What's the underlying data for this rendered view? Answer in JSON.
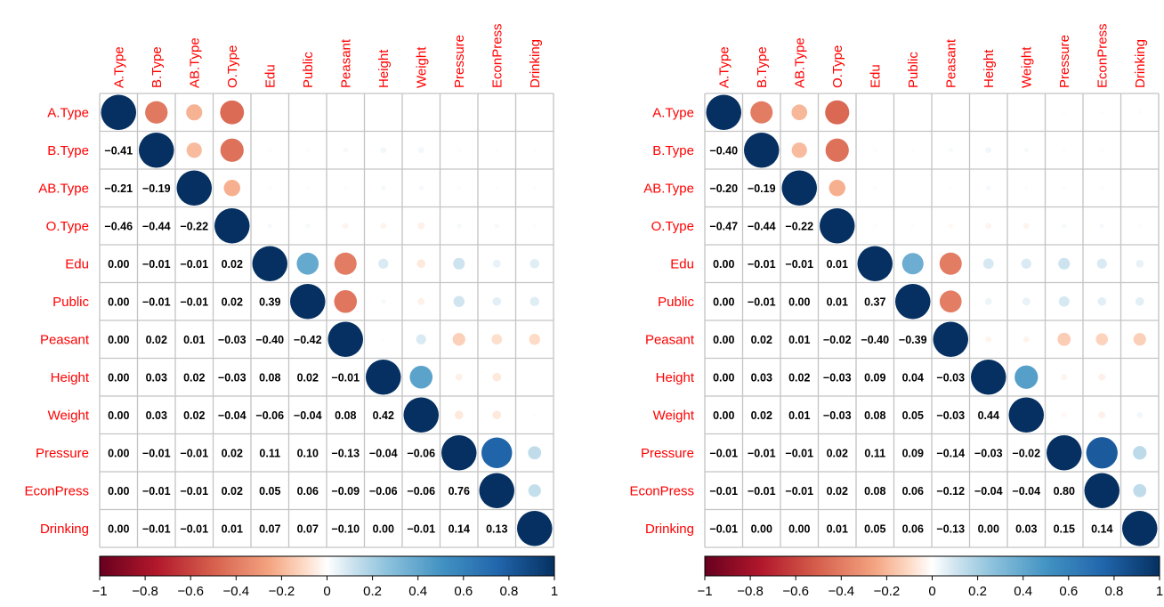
{
  "chart_data": [
    {
      "type": "heatmap",
      "subtype": "correlation-matrix (upper: circles, lower: numbers)",
      "variables": [
        "A.Type",
        "B.Type",
        "AB.Type",
        "O.Type",
        "Edu",
        "Public",
        "Peasant",
        "Height",
        "Weight",
        "Pressure",
        "EconPress",
        "Drinking"
      ],
      "matrix": [
        [
          1.0,
          -0.41,
          -0.21,
          -0.46,
          0.0,
          0.0,
          0.0,
          0.0,
          0.0,
          0.0,
          0.0,
          0.0
        ],
        [
          -0.41,
          1.0,
          -0.19,
          -0.44,
          -0.01,
          -0.01,
          0.02,
          0.03,
          0.03,
          -0.01,
          -0.01,
          -0.01
        ],
        [
          -0.21,
          -0.19,
          1.0,
          -0.22,
          -0.01,
          -0.01,
          0.01,
          0.02,
          0.02,
          -0.01,
          -0.01,
          -0.01
        ],
        [
          -0.46,
          -0.44,
          -0.22,
          1.0,
          0.02,
          0.02,
          -0.03,
          -0.03,
          -0.04,
          0.02,
          0.02,
          0.01
        ],
        [
          0.0,
          -0.01,
          -0.01,
          0.02,
          1.0,
          0.39,
          -0.4,
          0.08,
          -0.06,
          0.11,
          0.05,
          0.07
        ],
        [
          0.0,
          -0.01,
          -0.01,
          0.02,
          0.39,
          1.0,
          -0.42,
          0.02,
          -0.04,
          0.1,
          0.06,
          0.07
        ],
        [
          0.0,
          0.02,
          0.01,
          -0.03,
          -0.4,
          -0.42,
          1.0,
          -0.01,
          0.08,
          -0.13,
          -0.09,
          -0.1
        ],
        [
          0.0,
          0.03,
          0.02,
          -0.03,
          0.08,
          0.02,
          -0.01,
          1.0,
          0.42,
          -0.04,
          -0.06,
          0.0
        ],
        [
          0.0,
          0.03,
          0.02,
          -0.04,
          -0.06,
          -0.04,
          0.08,
          0.42,
          1.0,
          -0.06,
          -0.06,
          -0.01
        ],
        [
          0.0,
          -0.01,
          -0.01,
          0.02,
          0.11,
          0.1,
          -0.13,
          -0.04,
          -0.06,
          1.0,
          0.76,
          0.14
        ],
        [
          0.0,
          -0.01,
          -0.01,
          0.02,
          0.05,
          0.06,
          -0.09,
          -0.06,
          -0.06,
          0.76,
          1.0,
          0.13
        ],
        [
          0.0,
          -0.01,
          -0.01,
          0.01,
          0.07,
          0.07,
          -0.1,
          0.0,
          -0.01,
          0.14,
          0.13,
          1.0
        ]
      ],
      "colorbar": {
        "ticks": [
          "−1",
          "−0.8",
          "−0.6",
          "−0.4",
          "−0.2",
          "0",
          "0.2",
          "0.4",
          "0.6",
          "0.8",
          "1"
        ],
        "range": [
          -1,
          1
        ]
      },
      "colors": {
        "neg": "#67001f",
        "mid": "#ffffff",
        "pos": "#053061",
        "label": "#ff0000"
      },
      "grid": true
    },
    {
      "type": "heatmap",
      "subtype": "correlation-matrix (upper: circles, lower: numbers)",
      "variables": [
        "A.Type",
        "B.Type",
        "AB.Type",
        "O.Type",
        "Edu",
        "Public",
        "Peasant",
        "Height",
        "Weight",
        "Pressure",
        "EconPress",
        "Drinking"
      ],
      "matrix": [
        [
          1.0,
          -0.4,
          -0.2,
          -0.47,
          0.0,
          0.0,
          0.0,
          0.0,
          0.0,
          -0.01,
          -0.01,
          -0.01
        ],
        [
          -0.4,
          1.0,
          -0.19,
          -0.44,
          -0.01,
          -0.01,
          0.02,
          0.03,
          0.02,
          -0.01,
          -0.01,
          0.0
        ],
        [
          -0.2,
          -0.19,
          1.0,
          -0.22,
          -0.01,
          0.0,
          0.01,
          0.02,
          0.01,
          -0.01,
          -0.01,
          0.0
        ],
        [
          -0.47,
          -0.44,
          -0.22,
          1.0,
          0.01,
          0.01,
          -0.02,
          -0.03,
          -0.03,
          0.02,
          0.02,
          0.01
        ],
        [
          0.0,
          -0.01,
          -0.01,
          0.01,
          1.0,
          0.37,
          -0.4,
          0.09,
          0.08,
          0.11,
          0.08,
          0.05
        ],
        [
          0.0,
          -0.01,
          0.0,
          0.01,
          0.37,
          1.0,
          -0.39,
          0.04,
          0.05,
          0.09,
          0.06,
          0.06
        ],
        [
          0.0,
          0.02,
          0.01,
          -0.02,
          -0.4,
          -0.39,
          1.0,
          -0.03,
          -0.03,
          -0.14,
          -0.12,
          -0.13
        ],
        [
          0.0,
          0.03,
          0.02,
          -0.03,
          0.09,
          0.04,
          -0.03,
          1.0,
          0.44,
          -0.03,
          -0.04,
          0.0
        ],
        [
          0.0,
          0.02,
          0.01,
          -0.03,
          0.08,
          0.05,
          -0.03,
          0.44,
          1.0,
          -0.02,
          -0.04,
          0.03
        ],
        [
          -0.01,
          -0.01,
          -0.01,
          0.02,
          0.11,
          0.09,
          -0.14,
          -0.03,
          -0.02,
          1.0,
          0.8,
          0.15
        ],
        [
          -0.01,
          -0.01,
          -0.01,
          0.02,
          0.08,
          0.06,
          -0.12,
          -0.04,
          -0.04,
          0.8,
          1.0,
          0.14
        ],
        [
          -0.01,
          0.0,
          0.0,
          0.01,
          0.05,
          0.06,
          -0.13,
          0.0,
          0.03,
          0.15,
          0.14,
          1.0
        ]
      ],
      "colorbar": {
        "ticks": [
          "−1",
          "−0.8",
          "−0.6",
          "−0.4",
          "−0.2",
          "0",
          "0.2",
          "0.4",
          "0.6",
          "0.8",
          "1"
        ],
        "range": [
          -1,
          1
        ]
      },
      "colors": {
        "neg": "#67001f",
        "mid": "#ffffff",
        "pos": "#053061",
        "label": "#ff0000"
      },
      "grid": true
    }
  ]
}
